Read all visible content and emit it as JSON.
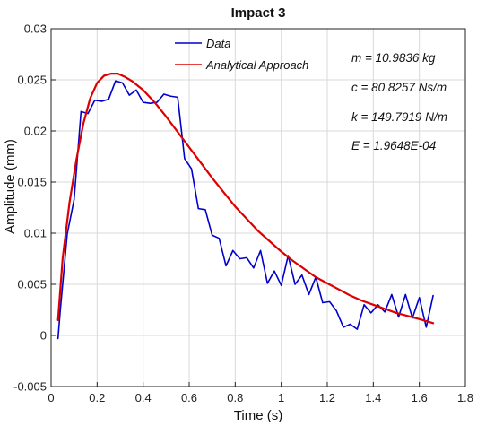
{
  "chart_data": {
    "type": "line",
    "title": "Impact 3",
    "xlabel": "Time (s)",
    "ylabel": "Amplitude (mm)",
    "xlim": [
      0,
      1.8
    ],
    "ylim": [
      -0.005,
      0.03
    ],
    "xticks": [
      0,
      0.2,
      0.4,
      0.6,
      0.8,
      1,
      1.2,
      1.4,
      1.6,
      1.8
    ],
    "xtick_labels": [
      "0",
      "0.2",
      "0.4",
      "0.6",
      "0.8",
      "1",
      "1.2",
      "1.4",
      "1.6",
      "1.8"
    ],
    "yticks": [
      -0.005,
      0,
      0.005,
      0.01,
      0.015,
      0.02,
      0.025,
      0.03
    ],
    "ytick_labels": [
      "-0.005",
      "0",
      "0.005",
      "0.01",
      "0.015",
      "0.02",
      "0.025",
      "0.03"
    ],
    "grid": true,
    "legend": {
      "placement": "top-center"
    },
    "series": [
      {
        "name": "Data",
        "color": "#0000cc",
        "x": [
          0.03,
          0.04,
          0.07,
          0.1,
          0.13,
          0.16,
          0.19,
          0.22,
          0.25,
          0.28,
          0.31,
          0.34,
          0.37,
          0.4,
          0.43,
          0.46,
          0.49,
          0.52,
          0.55,
          0.58,
          0.61,
          0.64,
          0.67,
          0.7,
          0.73,
          0.76,
          0.79,
          0.82,
          0.85,
          0.88,
          0.91,
          0.94,
          0.97,
          1.0,
          1.03,
          1.06,
          1.09,
          1.12,
          1.15,
          1.18,
          1.21,
          1.24,
          1.27,
          1.3,
          1.33,
          1.36,
          1.39,
          1.42,
          1.45,
          1.48,
          1.51,
          1.54,
          1.57,
          1.6,
          1.63,
          1.66
        ],
        "y": [
          -0.0003,
          0.0025,
          0.0099,
          0.0133,
          0.0219,
          0.0217,
          0.023,
          0.0229,
          0.0231,
          0.0249,
          0.0247,
          0.0235,
          0.024,
          0.0228,
          0.0227,
          0.0228,
          0.0236,
          0.0234,
          0.0233,
          0.0173,
          0.0163,
          0.0124,
          0.0123,
          0.0098,
          0.0095,
          0.0068,
          0.0083,
          0.0075,
          0.0076,
          0.0066,
          0.0083,
          0.0051,
          0.0063,
          0.0049,
          0.0078,
          0.005,
          0.0059,
          0.004,
          0.0057,
          0.0032,
          0.0033,
          0.0024,
          0.0008,
          0.0011,
          0.0006,
          0.003,
          0.0022,
          0.003,
          0.0023,
          0.004,
          0.0018,
          0.004,
          0.0017,
          0.0037,
          0.0008,
          0.0039
        ]
      },
      {
        "name": "Analytical Approach",
        "color": "#dd0000",
        "x": [
          0.03,
          0.05,
          0.08,
          0.11,
          0.14,
          0.17,
          0.2,
          0.23,
          0.26,
          0.29,
          0.32,
          0.35,
          0.4,
          0.45,
          0.5,
          0.55,
          0.6,
          0.65,
          0.7,
          0.75,
          0.8,
          0.85,
          0.9,
          0.95,
          1.0,
          1.05,
          1.1,
          1.15,
          1.2,
          1.25,
          1.3,
          1.35,
          1.4,
          1.45,
          1.5,
          1.55,
          1.6,
          1.66
        ],
        "y": [
          0.0015,
          0.0075,
          0.013,
          0.0172,
          0.0207,
          0.0232,
          0.0247,
          0.0254,
          0.0256,
          0.0256,
          0.0253,
          0.0249,
          0.024,
          0.0228,
          0.0214,
          0.0199,
          0.0184,
          0.0169,
          0.0154,
          0.014,
          0.0126,
          0.0114,
          0.0102,
          0.0092,
          0.0082,
          0.0073,
          0.0065,
          0.0057,
          0.0051,
          0.0045,
          0.0039,
          0.0034,
          0.003,
          0.0026,
          0.0022,
          0.0019,
          0.0016,
          0.0012
        ]
      }
    ],
    "annotations": [
      "m = 10.9836 kg",
      "c = 80.8257 Ns/m",
      "k = 149.7919 N/m",
      "E = 1.9648E-04"
    ]
  }
}
